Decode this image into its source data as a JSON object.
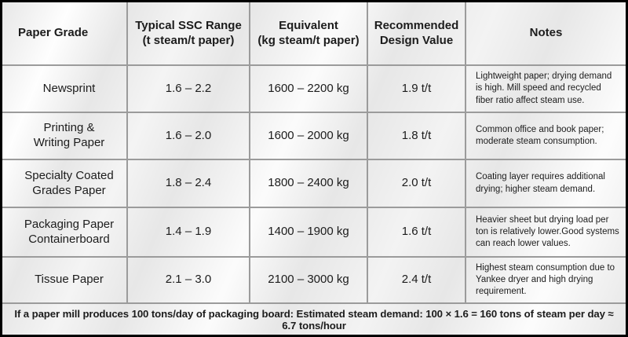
{
  "table": {
    "headers": {
      "paper_grade": "Paper Grade",
      "ssc_range": "Typical SSC Range\n(t steam/t paper)",
      "equivalent": "Equivalent\n(kg steam/t paper)",
      "design_value": "Recommended\nDesign Value",
      "notes": "Notes"
    },
    "rows": [
      {
        "grade": "Newsprint",
        "ssc_range": "1.6 – 2.2",
        "equivalent": "1600 – 2200 kg",
        "design_value": "1.9 t/t",
        "notes": "Lightweight paper; drying demand is high. Mill speed  and recycled fiber ratio affect steam use."
      },
      {
        "grade": "Printing &\nWriting Paper",
        "ssc_range": "1.6 – 2.0",
        "equivalent": "1600 – 2000 kg",
        "design_value": "1.8 t/t",
        "notes": "Common office and book paper; moderate steam consumption."
      },
      {
        "grade": "Specialty Coated\nGrades Paper",
        "ssc_range": "1.8 – 2.4",
        "equivalent": "1800 – 2400 kg",
        "design_value": "2.0 t/t",
        "notes": "Coating layer requires additional drying; higher steam demand."
      },
      {
        "grade": "Packaging Paper\nContainerboard",
        "ssc_range": "1.4 – 1.9",
        "equivalent": "1400 – 1900 kg",
        "design_value": "1.6 t/t",
        "notes": "Heavier sheet but drying load per ton is relatively lower.Good systems can reach lower values."
      },
      {
        "grade": "Tissue Paper",
        "ssc_range": "2.1 – 3.0",
        "equivalent": "2100 – 3000 kg",
        "design_value": "2.4 t/t",
        "notes": "Highest steam consumption due to Yankee dryer and high drying requirement."
      }
    ]
  },
  "footer": {
    "text": "If a paper mill produces 100 tons/day of packaging board: Estimated steam demand: 100 × 1.6 = 160 tons of steam per day ≈ 6.7 tons/hour"
  },
  "colors": {
    "outer_border": "#000000",
    "grid_line": "#9b9b9b",
    "background": "#e7e7e7",
    "text": "#1c1c1c"
  }
}
